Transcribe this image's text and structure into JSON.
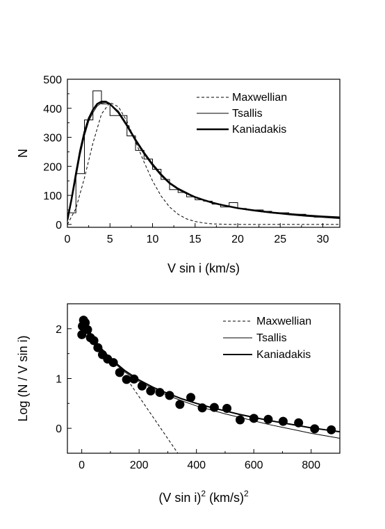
{
  "chart_data": [
    {
      "type": "line",
      "xlabel": "V sin i (km/s)",
      "ylabel": "N",
      "xlim": [
        0,
        32
      ],
      "ylim": [
        -10,
        500
      ],
      "xticks": [
        0,
        5,
        10,
        15,
        20,
        25,
        30
      ],
      "yticks": [
        0,
        100,
        200,
        300,
        400,
        500
      ],
      "legend_position": "top-right",
      "histogram": {
        "bin_edges": [
          0,
          1,
          2,
          3,
          4,
          5,
          6,
          7,
          8,
          9,
          10,
          11,
          12,
          13,
          14,
          15,
          16,
          17,
          18,
          19,
          20,
          21,
          22,
          23,
          24,
          25,
          26,
          27,
          28,
          29,
          30,
          31,
          32
        ],
        "counts": [
          40,
          175,
          360,
          460,
          415,
          375,
          375,
          305,
          255,
          225,
          190,
          155,
          120,
          110,
          95,
          85,
          80,
          70,
          60,
          75,
          55,
          50,
          50,
          45,
          40,
          40,
          35,
          35,
          30,
          25,
          25,
          25
        ]
      },
      "series": [
        {
          "name": "Maxwellian",
          "style": "dashed",
          "width": 1,
          "x": [
            0,
            1,
            2,
            3,
            4,
            5,
            6,
            7,
            8,
            9,
            10,
            11,
            12,
            13,
            14,
            15,
            16,
            17,
            18,
            19,
            20,
            22,
            24,
            26,
            28,
            30,
            32
          ],
          "y": [
            0,
            55,
            160,
            280,
            380,
            420,
            405,
            355,
            285,
            215,
            150,
            98,
            60,
            35,
            19,
            10,
            5,
            2,
            1,
            0,
            0,
            0,
            0,
            0,
            0,
            0,
            0
          ]
        },
        {
          "name": "Tsallis",
          "style": "solid",
          "width": 1,
          "x": [
            0,
            0.5,
            1,
            1.5,
            2,
            2.5,
            3,
            3.5,
            4,
            4.5,
            5,
            6,
            7,
            8,
            9,
            10,
            11,
            12,
            13,
            14,
            15,
            16,
            17,
            18,
            19,
            20,
            22,
            24,
            26,
            28,
            30,
            32
          ],
          "y": [
            10,
            80,
            160,
            240,
            305,
            355,
            385,
            408,
            418,
            420,
            415,
            390,
            345,
            295,
            250,
            210,
            175,
            145,
            125,
            110,
            95,
            85,
            76,
            68,
            61,
            55,
            46,
            39,
            33,
            28,
            24,
            20
          ]
        },
        {
          "name": "Kaniadakis",
          "style": "solid",
          "width": 2.5,
          "x": [
            0,
            0.5,
            1,
            1.5,
            2,
            2.5,
            3,
            3.5,
            4,
            4.5,
            5,
            6,
            7,
            8,
            9,
            10,
            11,
            12,
            13,
            14,
            15,
            16,
            17,
            18,
            19,
            20,
            22,
            24,
            26,
            28,
            30,
            32
          ],
          "y": [
            15,
            90,
            175,
            255,
            318,
            365,
            395,
            415,
            423,
            423,
            415,
            385,
            340,
            290,
            245,
            205,
            170,
            142,
            122,
            107,
            94,
            84,
            75,
            68,
            62,
            56,
            48,
            41,
            36,
            31,
            27,
            24
          ]
        }
      ]
    },
    {
      "type": "scatter",
      "xlabel_base": "(V sin i)",
      "xlabel_exp": "2",
      "xlabel_unit": " (km/s)",
      "ylabel": "Log (N / V sin i)",
      "xlim": [
        -50,
        900
      ],
      "ylim": [
        -0.5,
        2.5
      ],
      "xticks": [
        0,
        200,
        400,
        600,
        800
      ],
      "yticks": [
        0,
        1,
        2
      ],
      "legend_position": "top-right",
      "points": {
        "x": [
          0.25,
          2.25,
          6.25,
          12.25,
          20.25,
          30.25,
          42.25,
          56.25,
          72.25,
          90.25,
          110.25,
          132.25,
          156.25,
          182.25,
          210.25,
          240.25,
          272.25,
          306.25,
          342.25,
          380.25,
          420.25,
          462.25,
          506.25,
          552.25,
          600.25,
          650.25,
          702.25,
          756.25,
          812.25,
          870.25
        ],
        "y": [
          1.88,
          2.05,
          2.17,
          2.12,
          1.98,
          1.82,
          1.76,
          1.62,
          1.48,
          1.39,
          1.32,
          1.12,
          0.98,
          0.99,
          0.85,
          0.75,
          0.72,
          0.66,
          0.48,
          0.62,
          0.41,
          0.42,
          0.4,
          0.17,
          0.2,
          0.18,
          0.14,
          0.11,
          -0.01,
          -0.03
        ]
      },
      "series": [
        {
          "name": "Maxwellian",
          "style": "dashed",
          "width": 1,
          "x": [
            160,
            335
          ],
          "y": [
            0.97,
            -0.5
          ]
        },
        {
          "name": "Tsallis",
          "style": "solid",
          "width": 1,
          "x": [
            0,
            50,
            100,
            150,
            200,
            250,
            300,
            350,
            400,
            450,
            500,
            550,
            600,
            650,
            700,
            750,
            800,
            850,
            900
          ],
          "y": [
            2.2,
            1.7,
            1.38,
            1.13,
            0.94,
            0.79,
            0.66,
            0.55,
            0.45,
            0.37,
            0.29,
            0.22,
            0.15,
            0.08,
            0.02,
            -0.04,
            -0.1,
            -0.15,
            -0.2
          ]
        },
        {
          "name": "Kaniadakis",
          "style": "solid",
          "width": 2,
          "x": [
            0,
            50,
            100,
            150,
            200,
            250,
            300,
            350,
            400,
            450,
            500,
            550,
            600,
            650,
            700,
            750,
            800,
            850,
            900
          ],
          "y": [
            2.2,
            1.72,
            1.4,
            1.16,
            0.97,
            0.82,
            0.7,
            0.59,
            0.5,
            0.42,
            0.35,
            0.28,
            0.22,
            0.16,
            0.11,
            0.06,
            0.01,
            -0.03,
            -0.07
          ]
        }
      ]
    }
  ]
}
